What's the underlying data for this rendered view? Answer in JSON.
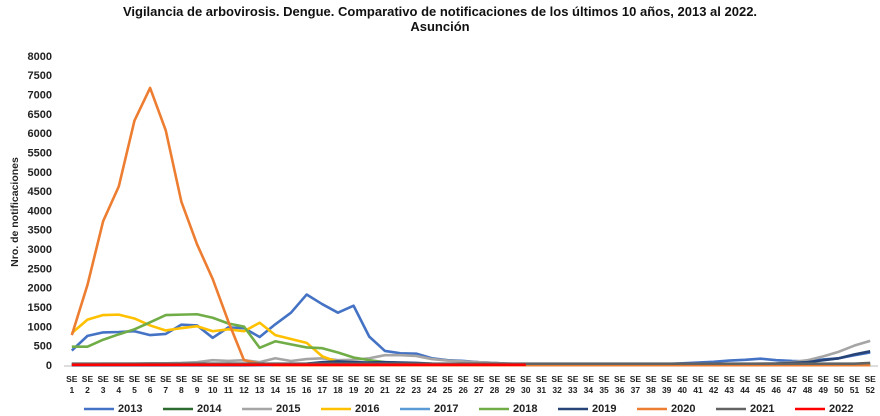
{
  "chart_data": {
    "type": "line",
    "title": "Vigilancia de arbovirosis. Dengue. Comparativo de notificaciones de los últimos 10 años, 2013 al 2022.  Asunción",
    "y_label": "Nro. de notificaciones",
    "categories": [
      "SE 1",
      "SE 2",
      "SE 3",
      "SE 4",
      "SE 5",
      "SE 6",
      "SE 7",
      "SE 8",
      "SE 9",
      "SE 10",
      "SE 11",
      "SE 12",
      "SE 13",
      "SE 14",
      "SE 15",
      "SE 16",
      "SE 17",
      "SE 18",
      "SE 19",
      "SE 20",
      "SE 21",
      "SE 22",
      "SE 23",
      "SE 24",
      "SE 25",
      "SE 26",
      "SE 27",
      "SE 28",
      "SE 29",
      "SE 30",
      "SE 31",
      "SE 32",
      "SE 33",
      "SE 34",
      "SE 35",
      "SE 36",
      "SE 37",
      "SE 38",
      "SE 39",
      "SE 40",
      "SE 41",
      "SE 42",
      "SE 43",
      "SE 44",
      "SE 45",
      "SE 46",
      "SE 47",
      "SE 48",
      "SE 49",
      "SE 50",
      "SE 51",
      "SE 52"
    ],
    "ylim": [
      0,
      8000
    ],
    "yticks": [
      0,
      500,
      1000,
      1500,
      2000,
      2500,
      3000,
      3500,
      4000,
      4500,
      5000,
      5500,
      6000,
      6500,
      7000,
      7500,
      8000
    ],
    "grid": false,
    "legend": "bottom",
    "series": [
      {
        "name": "2013",
        "color": "#4472c4",
        "values": [
          400,
          780,
          870,
          880,
          900,
          800,
          830,
          1070,
          1050,
          730,
          1000,
          980,
          750,
          1080,
          1380,
          1850,
          1600,
          1380,
          1560,
          760,
          390,
          330,
          320,
          200,
          150,
          130,
          100,
          80,
          50,
          30,
          30,
          30,
          30,
          30,
          40,
          40,
          50,
          40,
          50,
          70,
          90,
          110,
          140,
          160,
          190,
          150,
          130,
          120,
          170,
          200,
          280,
          350
        ]
      },
      {
        "name": "2014",
        "color": "#2e6b2e",
        "values": [
          50,
          50,
          50,
          50,
          50,
          50,
          50,
          50,
          50,
          50,
          50,
          50,
          50,
          50,
          50,
          50,
          50,
          50,
          50,
          50,
          50,
          50,
          50,
          50,
          50,
          50,
          50,
          50,
          50,
          50,
          50,
          50,
          50,
          50,
          50,
          50,
          50,
          50,
          50,
          50,
          50,
          50,
          50,
          50,
          50,
          50,
          50,
          50,
          50,
          50,
          50,
          50
        ]
      },
      {
        "name": "2015",
        "color": "#a5a5a5",
        "values": [
          50,
          50,
          60,
          60,
          60,
          70,
          70,
          80,
          100,
          150,
          130,
          150,
          100,
          200,
          130,
          180,
          200,
          150,
          160,
          200,
          280,
          280,
          260,
          180,
          140,
          120,
          100,
          80,
          60,
          40,
          40,
          30,
          30,
          30,
          30,
          30,
          30,
          30,
          30,
          40,
          40,
          50,
          50,
          50,
          60,
          70,
          100,
          150,
          250,
          370,
          530,
          650
        ]
      },
      {
        "name": "2016",
        "color": "#ffc000",
        "values": [
          850,
          1200,
          1320,
          1330,
          1230,
          1050,
          920,
          980,
          1030,
          900,
          950,
          900,
          1120,
          800,
          700,
          600,
          250,
          100,
          60,
          40,
          30,
          30,
          30,
          30,
          30,
          30,
          30,
          30,
          30,
          30,
          20,
          20,
          20,
          20,
          20,
          20,
          20,
          20,
          20,
          20,
          20,
          20,
          20,
          20,
          20,
          20,
          20,
          20,
          20,
          20,
          20,
          20
        ]
      },
      {
        "name": "2017",
        "color": "#5b9bd5",
        "values": [
          20,
          20,
          20,
          20,
          20,
          20,
          20,
          20,
          20,
          20,
          20,
          20,
          20,
          20,
          20,
          20,
          20,
          20,
          20,
          20,
          20,
          20,
          20,
          20,
          20,
          20,
          20,
          20,
          20,
          20,
          20,
          20,
          20,
          20,
          20,
          20,
          20,
          20,
          20,
          20,
          20,
          20,
          20,
          20,
          20,
          20,
          20,
          20,
          20,
          20,
          20,
          20
        ]
      },
      {
        "name": "2018",
        "color": "#70ad47",
        "values": [
          500,
          500,
          680,
          820,
          950,
          1130,
          1320,
          1330,
          1340,
          1250,
          1100,
          1020,
          470,
          640,
          560,
          480,
          460,
          350,
          220,
          150,
          100,
          80,
          60,
          50,
          40,
          30,
          30,
          30,
          30,
          30,
          20,
          20,
          20,
          20,
          20,
          20,
          20,
          20,
          20,
          20,
          20,
          20,
          20,
          20,
          20,
          20,
          20,
          20,
          20,
          20,
          20,
          20
        ]
      },
      {
        "name": "2019",
        "color": "#264478",
        "values": [
          20,
          20,
          20,
          20,
          20,
          20,
          20,
          20,
          20,
          20,
          20,
          20,
          30,
          40,
          50,
          60,
          100,
          120,
          100,
          90,
          100,
          90,
          80,
          60,
          50,
          40,
          30,
          30,
          20,
          20,
          20,
          20,
          20,
          20,
          20,
          20,
          20,
          20,
          20,
          20,
          20,
          20,
          30,
          40,
          50,
          60,
          80,
          100,
          150,
          200,
          300,
          380
        ]
      },
      {
        "name": "2020",
        "color": "#ed7d31",
        "values": [
          800,
          2100,
          3750,
          4650,
          6350,
          7200,
          6100,
          4250,
          3150,
          2250,
          1150,
          150,
          60,
          20,
          20,
          20,
          20,
          20,
          20,
          20,
          20,
          20,
          20,
          20,
          20,
          20,
          20,
          20,
          20,
          20,
          20,
          20,
          20,
          20,
          20,
          20,
          20,
          20,
          20,
          20,
          20,
          20,
          20,
          20,
          20,
          20,
          20,
          20,
          20,
          20,
          20,
          20
        ]
      },
      {
        "name": "2021",
        "color": "#636363",
        "values": [
          60,
          60,
          60,
          60,
          60,
          60,
          60,
          60,
          60,
          60,
          60,
          60,
          60,
          60,
          60,
          60,
          60,
          60,
          60,
          60,
          60,
          60,
          60,
          60,
          60,
          60,
          60,
          60,
          60,
          60,
          60,
          60,
          60,
          60,
          60,
          60,
          60,
          60,
          60,
          60,
          60,
          60,
          60,
          60,
          60,
          60,
          60,
          60,
          60,
          60,
          60,
          80
        ]
      },
      {
        "name": "2022",
        "color": "#ff0000",
        "values": [
          30,
          30,
          30,
          30,
          30,
          30,
          30,
          30,
          30,
          30,
          30,
          30,
          30,
          30,
          30,
          30,
          30,
          30,
          30,
          30,
          30,
          30,
          30,
          30,
          30,
          30,
          30,
          30,
          30,
          30,
          null,
          null,
          null,
          null,
          null,
          null,
          null,
          null,
          null,
          null,
          null,
          null,
          null,
          null,
          null,
          null,
          null,
          null,
          null,
          null,
          null,
          null
        ]
      }
    ]
  }
}
